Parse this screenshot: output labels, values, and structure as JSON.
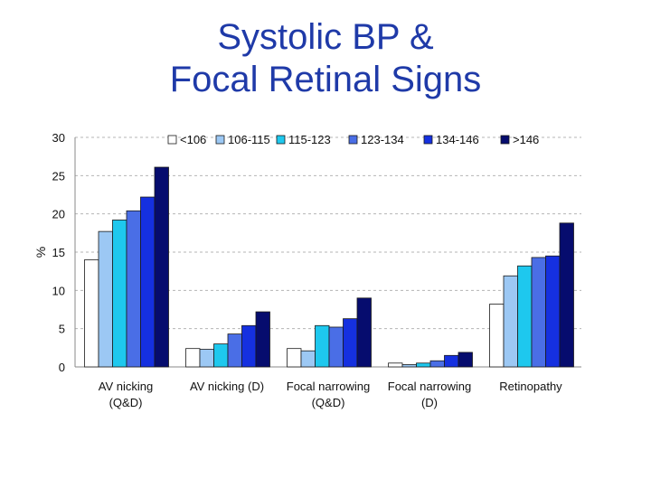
{
  "title_line1": "Systolic BP &",
  "title_line2": "Focal Retinal Signs",
  "chart_data": {
    "type": "bar",
    "ylabel": "%",
    "ylim": [
      0,
      30
    ],
    "yticks": [
      0,
      5,
      10,
      15,
      20,
      25,
      30
    ],
    "grid": "dashed horizontal",
    "legend_position": "top",
    "categories": [
      [
        "AV nicking",
        "(Q&D)"
      ],
      [
        "AV nicking (D)"
      ],
      [
        "Focal narrowing",
        "(Q&D)"
      ],
      [
        "Focal narrowing",
        "(D)"
      ],
      [
        "Retinopathy"
      ]
    ],
    "series": [
      {
        "name": "<106",
        "color": "#ffffff",
        "values": [
          14.0,
          2.4,
          2.4,
          0.5,
          8.2
        ]
      },
      {
        "name": "106-115",
        "color": "#9cc8f4",
        "values": [
          17.7,
          2.3,
          2.1,
          0.3,
          11.9
        ]
      },
      {
        "name": "115-123",
        "color": "#1ec8ee",
        "values": [
          19.2,
          3.0,
          5.4,
          0.5,
          13.2
        ]
      },
      {
        "name": "123-134",
        "color": "#4a6ee6",
        "values": [
          20.4,
          4.3,
          5.2,
          0.8,
          14.3
        ]
      },
      {
        "name": "134-146",
        "color": "#1530e0",
        "values": [
          22.2,
          5.4,
          6.3,
          1.5,
          14.5
        ]
      },
      {
        "name": ">146",
        "color": "#060c6e",
        "values": [
          26.1,
          7.2,
          9.0,
          1.9,
          18.8
        ]
      }
    ]
  }
}
